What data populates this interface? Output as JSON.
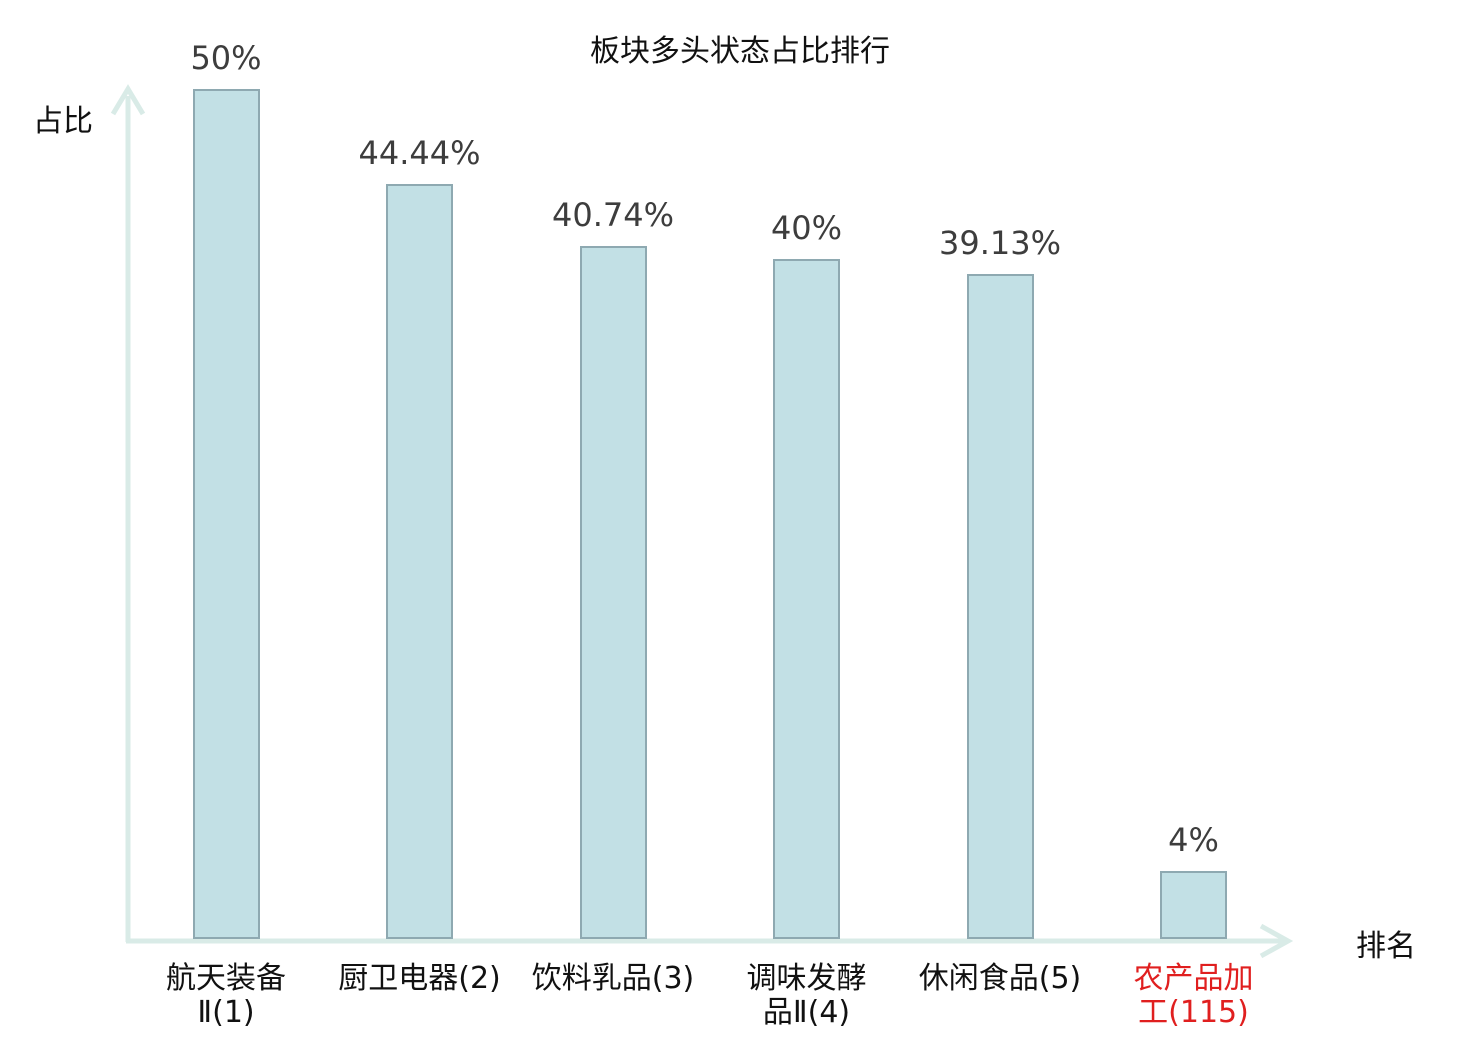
{
  "chart_data": {
    "type": "bar",
    "title": "板块多头状态占比排行",
    "xlabel": "排名",
    "ylabel": "占比",
    "categories": [
      "航天装备Ⅱ(1)",
      "厨卫电器(2)",
      "饮料乳品(3)",
      "调味发酵品Ⅱ(4)",
      "休闲食品(5)",
      "农产品加工(115)"
    ],
    "category_display": [
      "航天装备\nⅡ(1)",
      "厨卫电器(2)",
      "饮料乳品(3)",
      "调味发酵\n品Ⅱ(4)",
      "休闲食品(5)",
      "农产品加\n工(115)"
    ],
    "values": [
      50,
      44.44,
      40.74,
      40,
      39.13,
      4
    ],
    "value_labels": [
      "50%",
      "44.44%",
      "40.74%",
      "40%",
      "39.13%",
      "4%"
    ],
    "highlight_index": 5,
    "ylim": [
      0,
      50
    ],
    "grid": false,
    "legend": null,
    "colors": {
      "bar_fill": "#c2e0e5",
      "bar_border": "#8ea9b1",
      "axis": "#d9ebe7",
      "value_text": "#3d3d3d",
      "category_text": "#111111",
      "highlight_text": "#e01f1f"
    }
  }
}
